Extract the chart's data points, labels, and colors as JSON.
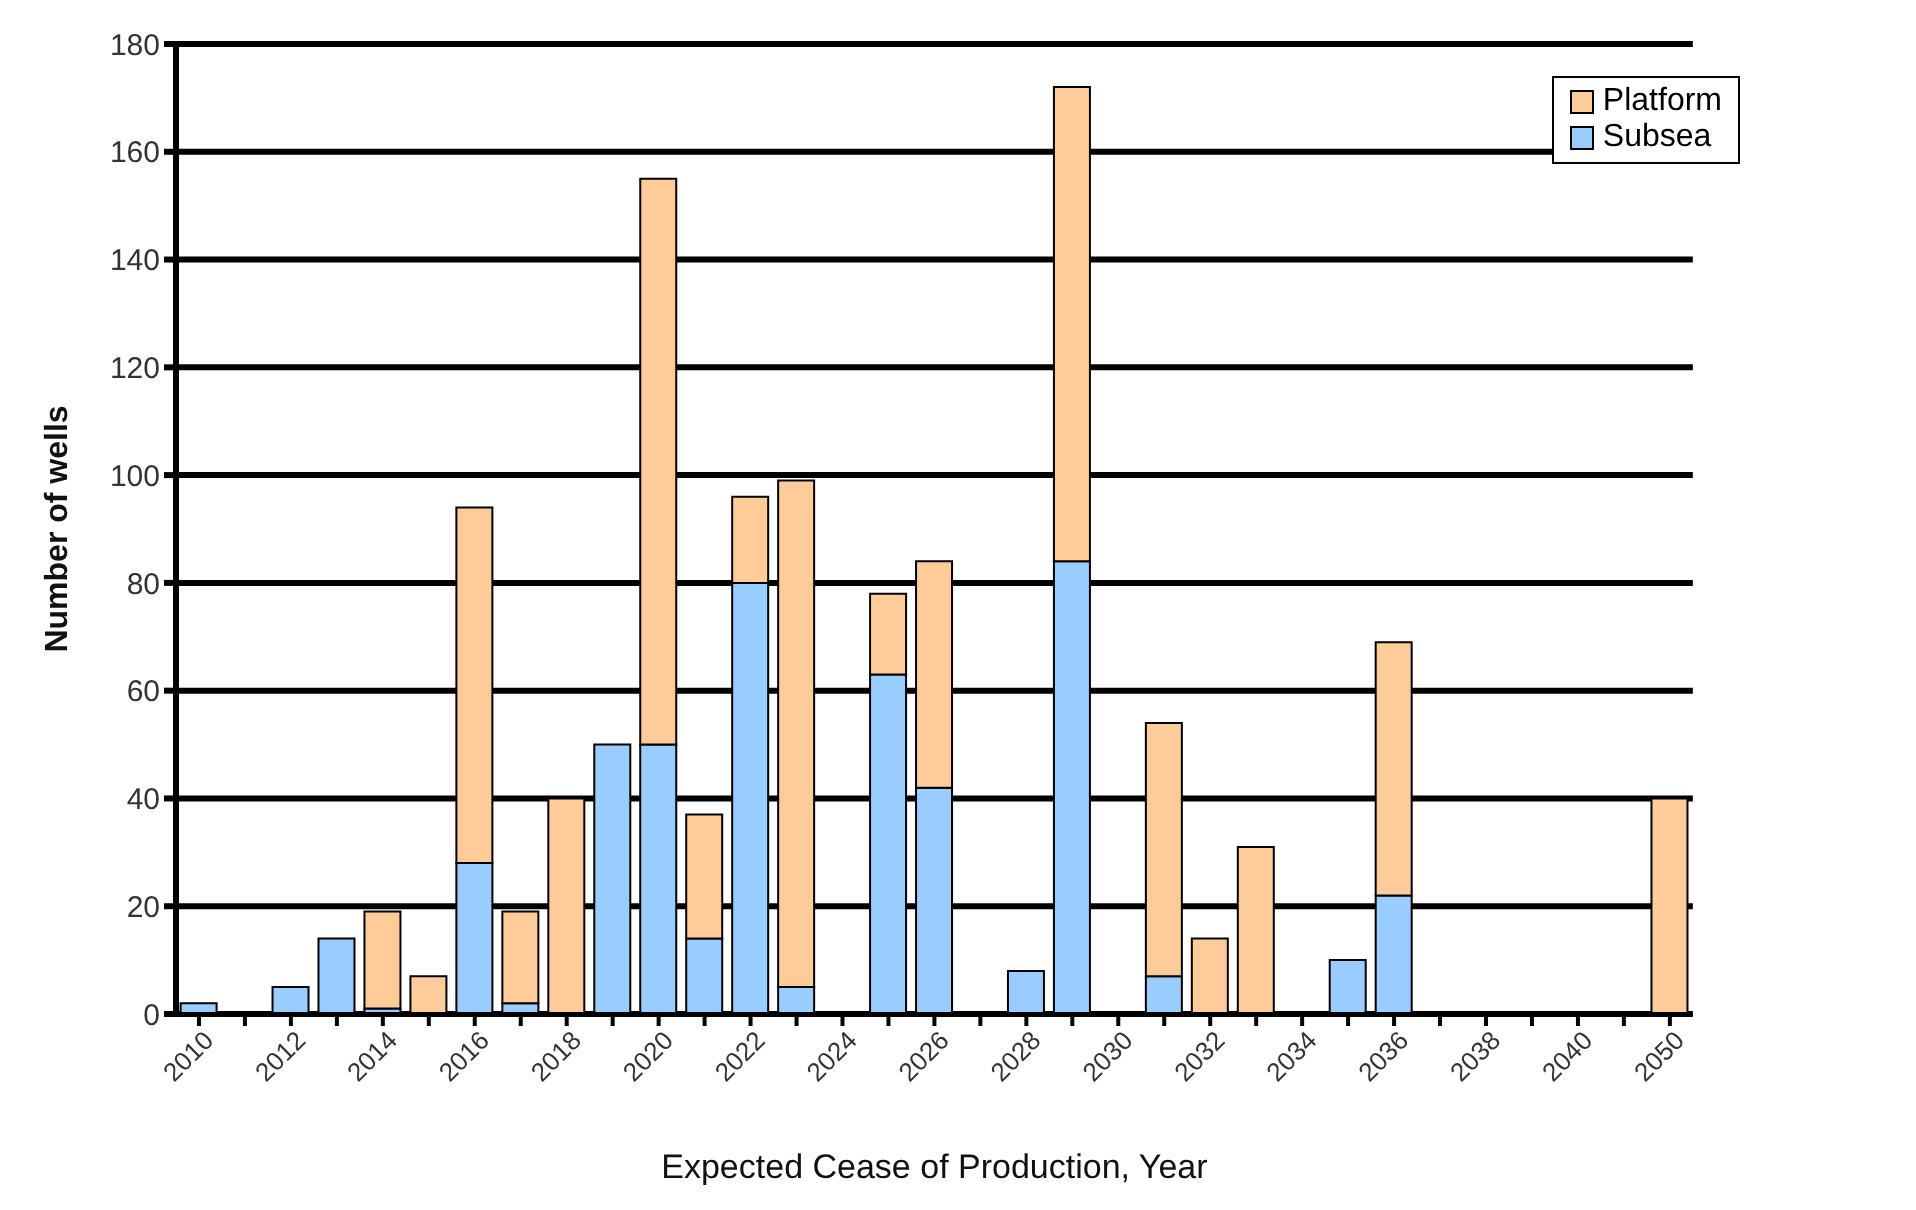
{
  "chart_data": {
    "type": "bar",
    "stacked": true,
    "xlabel": "Expected Cease of Production, Year",
    "ylabel": "Number of wells",
    "categories": [
      "2010",
      null,
      "2012",
      null,
      "2014",
      null,
      "2016",
      null,
      "2018",
      null,
      "2020",
      null,
      "2022",
      null,
      "2024",
      null,
      "2026",
      null,
      "2028",
      null,
      "2030",
      null,
      "2032",
      null,
      "2034",
      null,
      "2036",
      null,
      "2038",
      null,
      "2040",
      null,
      "2050"
    ],
    "series": [
      {
        "name": "Subsea",
        "color": "#99ccff",
        "values": [
          2,
          null,
          5,
          14,
          1,
          null,
          28,
          2,
          null,
          50,
          50,
          14,
          80,
          5,
          null,
          63,
          42,
          null,
          8,
          84,
          null,
          7,
          null,
          null,
          null,
          10,
          22,
          null,
          null,
          null,
          null,
          null,
          null
        ]
      },
      {
        "name": "Platform",
        "color": "#ffcc99",
        "values": [
          null,
          null,
          null,
          null,
          18,
          7,
          66,
          17,
          40,
          null,
          105,
          23,
          16,
          94,
          null,
          15,
          42,
          null,
          null,
          88,
          null,
          47,
          14,
          31,
          null,
          null,
          47,
          null,
          null,
          null,
          null,
          null,
          40
        ]
      }
    ],
    "ylim": [
      0,
      180
    ],
    "yticks": [
      0,
      20,
      40,
      60,
      80,
      100,
      120,
      140,
      160,
      180
    ],
    "grid": "y",
    "legend": "top right"
  }
}
